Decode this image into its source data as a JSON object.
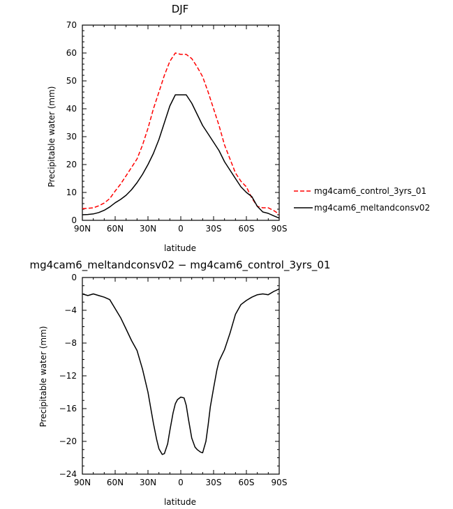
{
  "chart_data": [
    {
      "type": "line",
      "title": "DJF",
      "xlabel": "latitude",
      "ylabel": "Precipitable water (mm)",
      "xlim": [
        -90,
        90
      ],
      "ylim": [
        0,
        70
      ],
      "x_ticks": [
        -90,
        -60,
        -30,
        0,
        30,
        60,
        90
      ],
      "x_tick_labels": [
        "90N",
        "60N",
        "30N",
        "0",
        "30S",
        "60S",
        "90S"
      ],
      "y_ticks": [
        0,
        10,
        20,
        30,
        40,
        50,
        60,
        70
      ],
      "y_tick_labels": [
        "0",
        "10",
        "20",
        "30",
        "40",
        "50",
        "60",
        "70"
      ],
      "legend_position": "right",
      "series": [
        {
          "name": "mg4cam6_control_3yrs_01",
          "color": "#ff0000",
          "dash": "dashed",
          "x": [
            -90,
            -85,
            -80,
            -75,
            -70,
            -65,
            -60,
            -55,
            -50,
            -45,
            -40,
            -35,
            -30,
            -25,
            -20,
            -15,
            -10,
            -5,
            0,
            5,
            10,
            15,
            20,
            25,
            30,
            35,
            40,
            45,
            50,
            55,
            60,
            65,
            70,
            75,
            80,
            85,
            90
          ],
          "values": [
            4.2,
            4.3,
            4.5,
            5.2,
            6.2,
            7.8,
            10.5,
            13,
            16,
            19,
            22,
            27,
            33,
            40,
            46,
            52,
            57,
            60,
            59.5,
            59.5,
            58,
            55,
            51.5,
            46,
            40,
            34,
            27,
            22,
            17,
            14,
            12,
            8,
            5,
            4.5,
            4.5,
            3.5,
            2.2
          ]
        },
        {
          "name": "mg4cam6_meltandconsv02",
          "color": "#000000",
          "dash": "solid",
          "x": [
            -90,
            -85,
            -80,
            -75,
            -70,
            -65,
            -60,
            -55,
            -50,
            -45,
            -40,
            -35,
            -30,
            -25,
            -20,
            -15,
            -10,
            -5,
            0,
            5,
            10,
            15,
            20,
            25,
            30,
            35,
            40,
            45,
            50,
            55,
            60,
            65,
            70,
            75,
            80,
            85,
            90
          ],
          "values": [
            2,
            2.1,
            2.3,
            2.8,
            3.6,
            4.8,
            6.3,
            7.5,
            9,
            11,
            13.5,
            16.5,
            20,
            24,
            29,
            35,
            41,
            45,
            45,
            45,
            42,
            38,
            34,
            31,
            28,
            25,
            21,
            18,
            15,
            12,
            10,
            8.5,
            5,
            3,
            2.5,
            1.6,
            0.8
          ]
        }
      ]
    },
    {
      "type": "line",
      "title": "mg4cam6_meltandconsv02 − mg4cam6_control_3yrs_01",
      "xlabel": "latitude",
      "ylabel": "Precipitable water (mm)",
      "xlim": [
        -90,
        90
      ],
      "ylim": [
        -24,
        0
      ],
      "x_ticks": [
        -90,
        -60,
        -30,
        0,
        30,
        60,
        90
      ],
      "x_tick_labels": [
        "90N",
        "60N",
        "30N",
        "0",
        "30S",
        "60S",
        "90S"
      ],
      "y_ticks": [
        -24,
        -20,
        -16,
        -12,
        -8,
        -4,
        0
      ],
      "y_tick_labels": [
        "−24",
        "−20",
        "−16",
        "−12",
        "−8",
        "−4",
        "0"
      ],
      "series": [
        {
          "color": "#000000",
          "dash": "solid",
          "x": [
            -90,
            -85,
            -80,
            -75,
            -70,
            -65,
            -60,
            -55,
            -50,
            -45,
            -40,
            -35,
            -30,
            -27,
            -25,
            -22,
            -20,
            -17,
            -15,
            -12,
            -10,
            -7,
            -5,
            -3,
            0,
            3,
            5,
            7,
            10,
            13,
            15,
            18,
            20,
            23,
            25,
            27,
            30,
            33,
            35,
            40,
            45,
            50,
            55,
            60,
            65,
            70,
            75,
            80,
            85,
            90
          ],
          "values": [
            -2,
            -2.2,
            -2.0,
            -2.2,
            -2.4,
            -2.7,
            -3.8,
            -4.9,
            -6.3,
            -7.7,
            -8.9,
            -11.2,
            -14.0,
            -16.3,
            -17.8,
            -19.8,
            -20.9,
            -21.6,
            -21.5,
            -20.3,
            -18.7,
            -16.5,
            -15.4,
            -14.9,
            -14.6,
            -14.7,
            -15.6,
            -17.3,
            -19.6,
            -20.7,
            -21.0,
            -21.3,
            -21.4,
            -20.0,
            -18.0,
            -15.8,
            -13.5,
            -11.3,
            -10.2,
            -8.8,
            -6.8,
            -4.5,
            -3.3,
            -2.8,
            -2.4,
            -2.1,
            -2.0,
            -2.1,
            -1.7,
            -1.4
          ]
        }
      ]
    }
  ]
}
